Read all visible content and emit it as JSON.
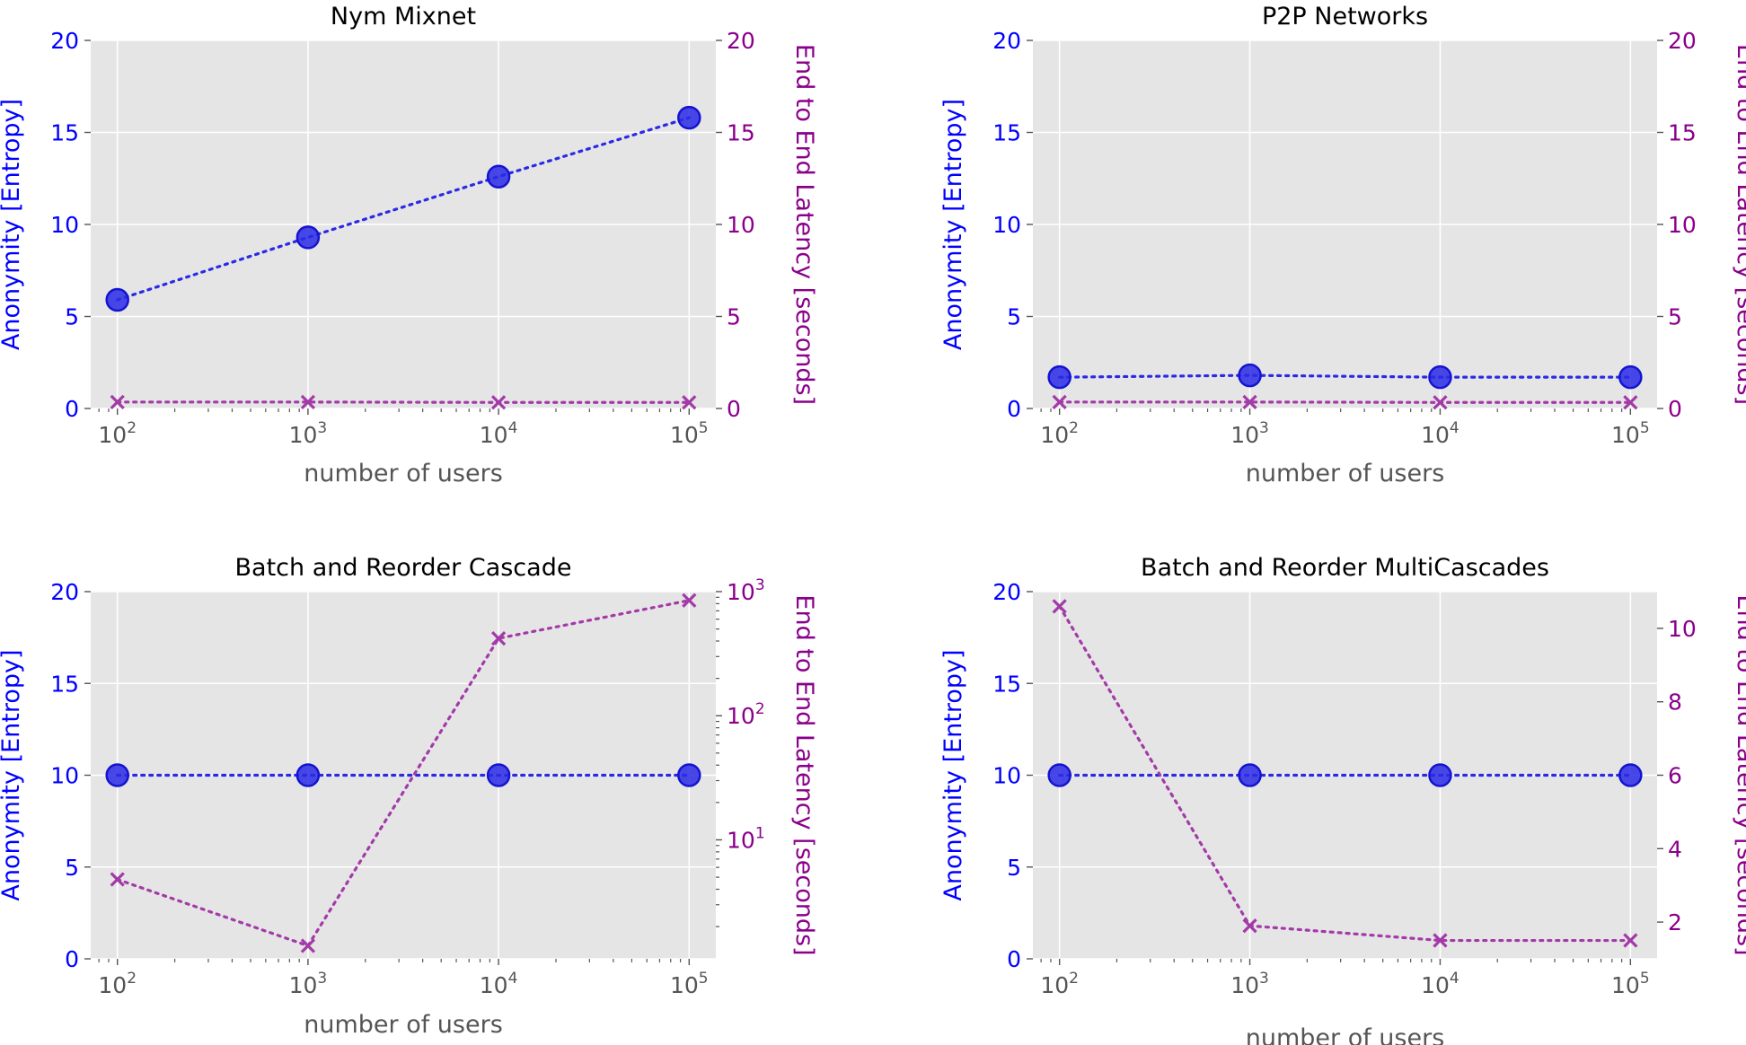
{
  "colors": {
    "left_axis": "#0000ff",
    "right_axis": "#8b008b",
    "entropy_line": "#2a2ae6",
    "latency_line": "#a33aa8",
    "panel_bg": "#e5e5e5",
    "grid": "#ffffff",
    "tick_text": "#555555"
  },
  "chart_data": [
    {
      "type": "line",
      "title": "Nym Mixnet",
      "xlabel": "number of users",
      "ylabel": "Anonymity [Entropy]",
      "y2label": "End to End Latency [seconds]",
      "x_scale": "log",
      "x": [
        100,
        1000,
        10000,
        100000
      ],
      "x_ticklabels": [
        {
          "base": "10",
          "exp": "2"
        },
        {
          "base": "10",
          "exp": "3"
        },
        {
          "base": "10",
          "exp": "4"
        },
        {
          "base": "10",
          "exp": "5"
        }
      ],
      "ylim": [
        0,
        20
      ],
      "yticks": [
        "0",
        "5",
        "10",
        "15",
        "20"
      ],
      "y2_scale": "linear",
      "y2lim": [
        0,
        20
      ],
      "y2ticks": [
        {
          "label": "0",
          "value": 0
        },
        {
          "label": "5",
          "value": 5
        },
        {
          "label": "10",
          "value": 10
        },
        {
          "label": "15",
          "value": 15
        },
        {
          "label": "20",
          "value": 20
        }
      ],
      "series": [
        {
          "axis": "left",
          "marker": "o",
          "values": [
            5.9,
            9.3,
            12.6,
            15.8
          ]
        },
        {
          "axis": "right",
          "marker": "x",
          "values": [
            0.35,
            0.35,
            0.33,
            0.33
          ]
        }
      ],
      "grid": true
    },
    {
      "type": "line",
      "title": "P2P Networks",
      "xlabel": "number of users",
      "ylabel": "Anonymity [Entropy]",
      "y2label": "End to End Latency [seconds]",
      "x_scale": "log",
      "x": [
        100,
        1000,
        10000,
        100000
      ],
      "x_ticklabels": [
        {
          "base": "10",
          "exp": "2"
        },
        {
          "base": "10",
          "exp": "3"
        },
        {
          "base": "10",
          "exp": "4"
        },
        {
          "base": "10",
          "exp": "5"
        }
      ],
      "ylim": [
        0,
        20
      ],
      "yticks": [
        "0",
        "5",
        "10",
        "15",
        "20"
      ],
      "y2_scale": "linear",
      "y2lim": [
        0,
        20
      ],
      "y2ticks": [
        {
          "label": "0",
          "value": 0
        },
        {
          "label": "5",
          "value": 5
        },
        {
          "label": "10",
          "value": 10
        },
        {
          "label": "15",
          "value": 15
        },
        {
          "label": "20",
          "value": 20
        }
      ],
      "series": [
        {
          "axis": "left",
          "marker": "o",
          "values": [
            1.7,
            1.8,
            1.7,
            1.7
          ]
        },
        {
          "axis": "right",
          "marker": "x",
          "values": [
            0.35,
            0.35,
            0.33,
            0.33
          ]
        }
      ],
      "grid": true
    },
    {
      "type": "line",
      "title": "Batch and Reorder Cascade",
      "xlabel": "number of users",
      "ylabel": "Anonymity [Entropy]",
      "y2label": "End to End Latency [seconds]",
      "x_scale": "log",
      "x": [
        100,
        1000,
        10000,
        100000
      ],
      "x_ticklabels": [
        {
          "base": "10",
          "exp": "2"
        },
        {
          "base": "10",
          "exp": "3"
        },
        {
          "base": "10",
          "exp": "4"
        },
        {
          "base": "10",
          "exp": "5"
        }
      ],
      "ylim": [
        0,
        20
      ],
      "yticks": [
        "0",
        "5",
        "10",
        "15",
        "20"
      ],
      "y2_scale": "log",
      "y2lim": [
        1.1,
        1000
      ],
      "y2ticks": [
        {
          "label": "10",
          "sup": "1",
          "value": 10
        },
        {
          "label": "10",
          "sup": "2",
          "value": 100
        },
        {
          "label": "10",
          "sup": "3",
          "value": 1000
        }
      ],
      "series": [
        {
          "axis": "left",
          "marker": "o",
          "values": [
            10,
            10,
            10,
            10
          ]
        },
        {
          "axis": "right",
          "marker": "x",
          "values": [
            4.8,
            1.4,
            420,
            850
          ]
        }
      ],
      "grid": true
    },
    {
      "type": "line",
      "title": "Batch and Reorder MultiCascades",
      "xlabel": "number of users",
      "ylabel": "Anonymity [Entropy]",
      "y2label": "End to End Latency [seconds]",
      "x_scale": "log",
      "x": [
        100,
        1000,
        10000,
        100000
      ],
      "x_ticklabels": [
        {
          "base": "10",
          "exp": "2"
        },
        {
          "base": "10",
          "exp": "3"
        },
        {
          "base": "10",
          "exp": "4"
        },
        {
          "base": "10",
          "exp": "5"
        }
      ],
      "ylim": [
        0,
        20
      ],
      "yticks": [
        "0",
        "5",
        "10",
        "15",
        "20"
      ],
      "y2_scale": "linear",
      "y2lim": [
        1,
        11
      ],
      "y2ticks": [
        {
          "label": "2",
          "value": 2
        },
        {
          "label": "4",
          "value": 4
        },
        {
          "label": "6",
          "value": 6
        },
        {
          "label": "8",
          "value": 8
        },
        {
          "label": "10",
          "value": 10
        }
      ],
      "series": [
        {
          "axis": "left",
          "marker": "o",
          "values": [
            10,
            10,
            10,
            10
          ]
        },
        {
          "axis": "right",
          "marker": "x",
          "values": [
            10.6,
            1.9,
            1.5,
            1.5
          ]
        }
      ],
      "grid": true
    }
  ]
}
